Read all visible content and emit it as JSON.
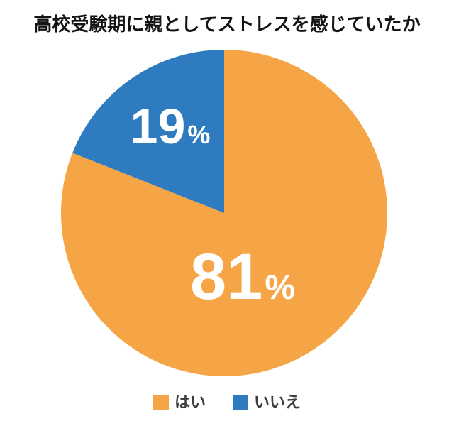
{
  "page": {
    "background_color": "#FFFFFF"
  },
  "chart_data": {
    "type": "pie",
    "title": "高校受験期に親としてストレスを感じていたか",
    "unit": "%",
    "slices": [
      {
        "key": "yes",
        "label": "はい",
        "value": 81,
        "color": "#F5A545"
      },
      {
        "key": "no",
        "label": "いいえ",
        "value": 19,
        "color": "#2E7CBF"
      }
    ],
    "start_angle_deg": 0,
    "direction": "clockwise",
    "legend_position": "bottom",
    "title_color": "#141414",
    "value_label_color": "#FFFFFF",
    "legend_text_color": "#3D3D3D"
  }
}
